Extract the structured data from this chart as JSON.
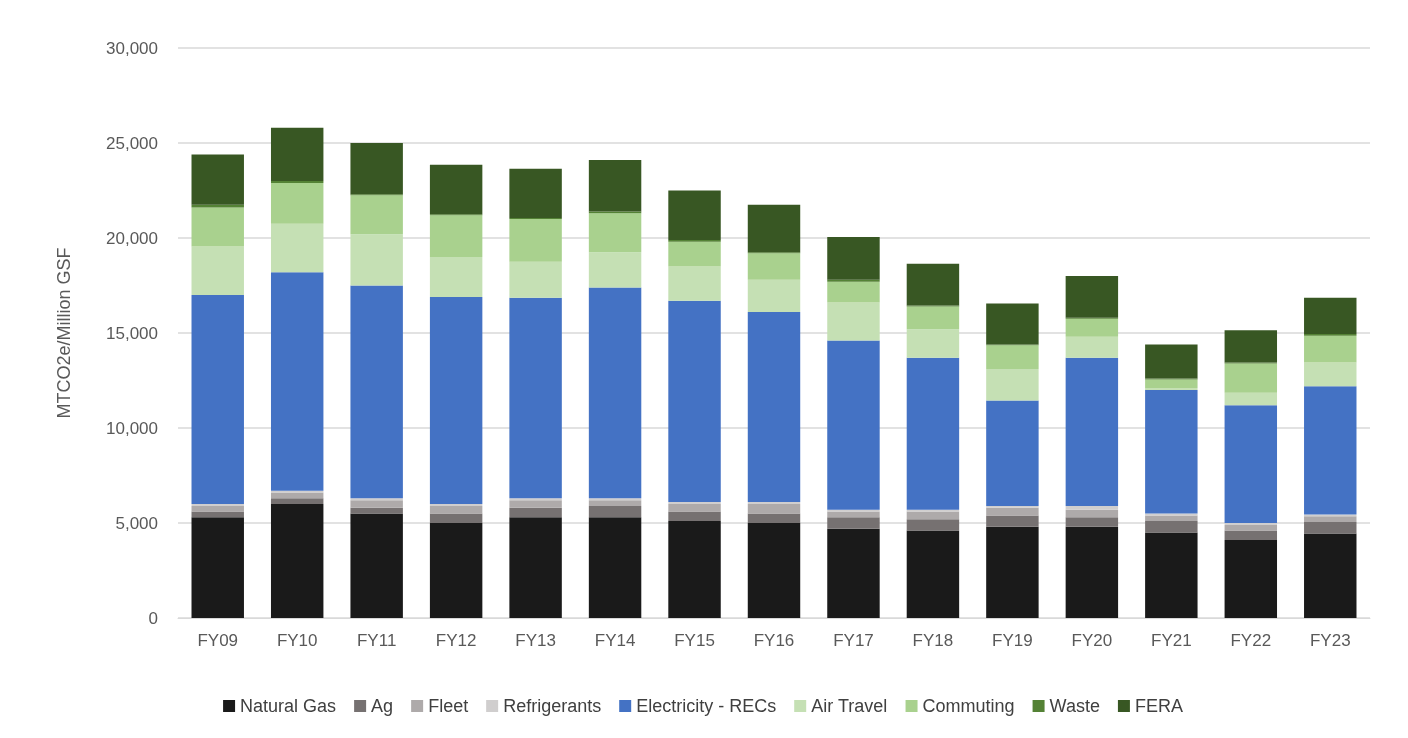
{
  "chart_data": {
    "type": "bar",
    "stacked": true,
    "ylabel": "MTCO2e/Million GSF",
    "categories": [
      "FY09",
      "FY10",
      "FY11",
      "FY12",
      "FY13",
      "FY14",
      "FY15",
      "FY16",
      "FY17",
      "FY18",
      "FY19",
      "FY20",
      "FY21",
      "FY22",
      "FY23"
    ],
    "series": [
      {
        "name": "Natural Gas",
        "color": "#1a1a1a",
        "values": [
          5300,
          6000,
          5500,
          5000,
          5300,
          5300,
          5100,
          5000,
          4700,
          4600,
          4800,
          4800,
          4500,
          4100,
          4450
        ]
      },
      {
        "name": "Ag",
        "color": "#767171",
        "values": [
          300,
          300,
          300,
          500,
          500,
          600,
          500,
          500,
          600,
          600,
          600,
          500,
          600,
          500,
          600
        ]
      },
      {
        "name": "Fleet",
        "color": "#aeaaaa",
        "values": [
          300,
          300,
          400,
          400,
          400,
          300,
          400,
          500,
          300,
          400,
          400,
          400,
          300,
          300,
          300
        ]
      },
      {
        "name": "Refrigerants",
        "color": "#d0cece",
        "values": [
          100,
          100,
          100,
          100,
          100,
          100,
          100,
          100,
          100,
          100,
          100,
          200,
          100,
          100,
          100
        ]
      },
      {
        "name": "Electricity - RECs",
        "color": "#4472c4",
        "values": [
          11000,
          11500,
          11200,
          10900,
          10550,
          11100,
          10600,
          10000,
          8900,
          8000,
          5550,
          7800,
          6500,
          6200,
          6750
        ]
      },
      {
        "name": "Air Travel",
        "color": "#c5e0b4",
        "values": [
          2550,
          2550,
          2700,
          2100,
          1900,
          1850,
          1800,
          1700,
          2000,
          1500,
          1650,
          1100,
          100,
          650,
          1250
        ]
      },
      {
        "name": "Commuting",
        "color": "#a9d18e",
        "values": [
          2050,
          2150,
          2050,
          2200,
          2250,
          2050,
          1300,
          1400,
          1100,
          1200,
          1250,
          950,
          450,
          1550,
          1400
        ]
      },
      {
        "name": "Waste",
        "color": "#548235",
        "values": [
          150,
          100,
          50,
          50,
          50,
          100,
          100,
          50,
          100,
          50,
          50,
          50,
          50,
          50,
          100
        ]
      },
      {
        "name": "FERA",
        "color": "#385723",
        "values": [
          2650,
          2800,
          2700,
          2600,
          2600,
          2700,
          2600,
          2500,
          2250,
          2200,
          2150,
          2200,
          1800,
          1700,
          1900
        ]
      }
    ],
    "ylim": [
      0,
      30000
    ],
    "yticks": [
      0,
      {
        "value": 5000,
        "label": "5,000"
      },
      {
        "value": 10000,
        "label": "10,000"
      },
      {
        "value": 15000,
        "label": "15,000"
      },
      {
        "value": 20000,
        "label": "20,000"
      },
      {
        "value": 25000,
        "label": "25,000"
      },
      {
        "value": 30000,
        "label": "30,000"
      }
    ],
    "grid": "y",
    "legend": "bottom"
  }
}
